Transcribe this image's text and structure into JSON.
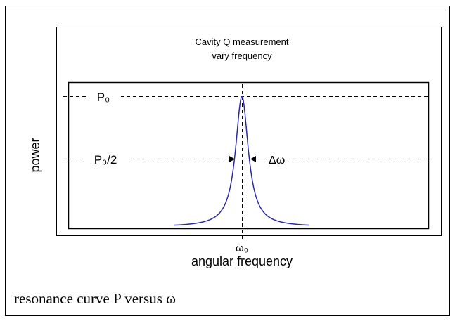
{
  "diagram": {
    "title_line1": "Cavity Q measurement",
    "title_line2": "vary frequency",
    "peak_label": "P₀",
    "half_label": "P₀/2",
    "width_label": "Δω",
    "center_label": "ω₀",
    "y_axis_label": "power",
    "x_axis_label": "angular frequency"
  },
  "caption": "resonance curve P versus ω"
}
